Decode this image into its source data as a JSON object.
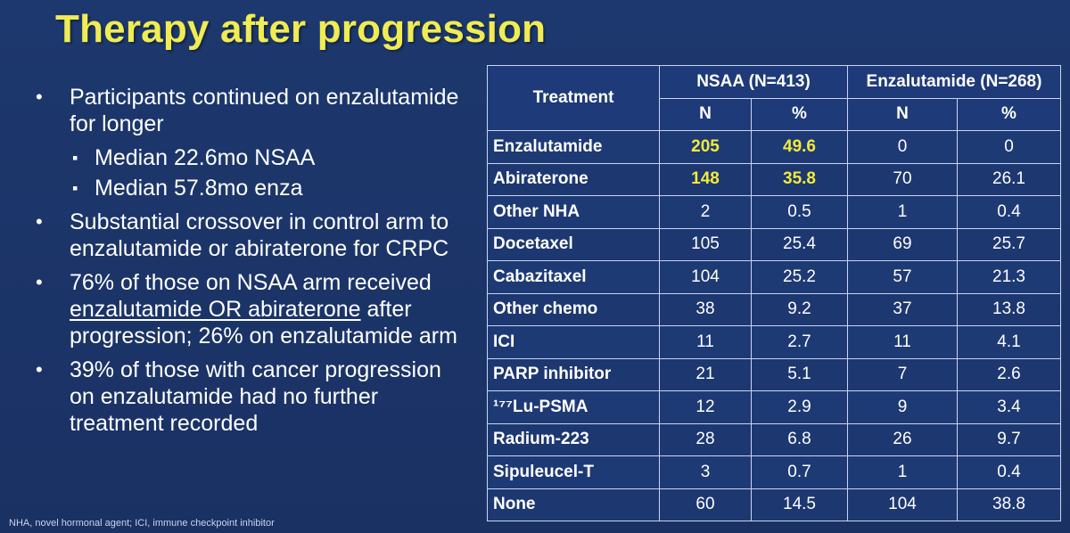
{
  "title": "Therapy after progression",
  "bullets": {
    "b1": "Participants continued on enzalutamide for longer",
    "b1_sub1": "Median 22.6mo NSAA",
    "b1_sub2": "Median 57.8mo enza",
    "b2": "Substantial crossover in control arm to enzalutamide or abiraterone for CRPC",
    "b3_pre": "76% of those on NSAA arm received ",
    "b3_link": "enzalutamide OR abiraterone",
    "b3_post": " after progression; 26% on enzalutamide arm",
    "b4": "39% of those with cancer progression on enzalutamide had no further treatment recorded"
  },
  "footnote": "NHA, novel hormonal agent; ICI, immune checkpoint inhibitor",
  "table": {
    "header": {
      "treatment": "Treatment",
      "group1": "NSAA (N=413)",
      "group2": "Enzalutamide (N=268)",
      "n": "N",
      "pct": "%"
    },
    "rows": [
      {
        "label": "Enzalutamide",
        "n1": "205",
        "p1": "49.6",
        "n2": "0",
        "p2": "0"
      },
      {
        "label": "Abiraterone",
        "n1": "148",
        "p1": "35.8",
        "n2": "70",
        "p2": "26.1"
      },
      {
        "label": "Other NHA",
        "n1": "2",
        "p1": "0.5",
        "n2": "1",
        "p2": "0.4"
      },
      {
        "label": "Docetaxel",
        "n1": "105",
        "p1": "25.4",
        "n2": "69",
        "p2": "25.7"
      },
      {
        "label": "Cabazitaxel",
        "n1": "104",
        "p1": "25.2",
        "n2": "57",
        "p2": "21.3"
      },
      {
        "label": "Other chemo",
        "n1": "38",
        "p1": "9.2",
        "n2": "37",
        "p2": "13.8"
      },
      {
        "label": "ICI",
        "n1": "11",
        "p1": "2.7",
        "n2": "11",
        "p2": "4.1"
      },
      {
        "label": "PARP inhibitor",
        "n1": "21",
        "p1": "5.1",
        "n2": "7",
        "p2": "2.6"
      },
      {
        "label": "¹⁷⁷Lu-PSMA",
        "n1": "12",
        "p1": "2.9",
        "n2": "9",
        "p2": "3.4"
      },
      {
        "label": "Radium-223",
        "n1": "28",
        "p1": "6.8",
        "n2": "26",
        "p2": "9.7"
      },
      {
        "label": "Sipuleucel-T",
        "n1": "3",
        "p1": "0.7",
        "n2": "1",
        "p2": "0.4"
      },
      {
        "label": "None",
        "n1": "60",
        "p1": "14.5",
        "n2": "104",
        "p2": "38.8"
      }
    ],
    "highlight_color": "#f2ea3c"
  }
}
